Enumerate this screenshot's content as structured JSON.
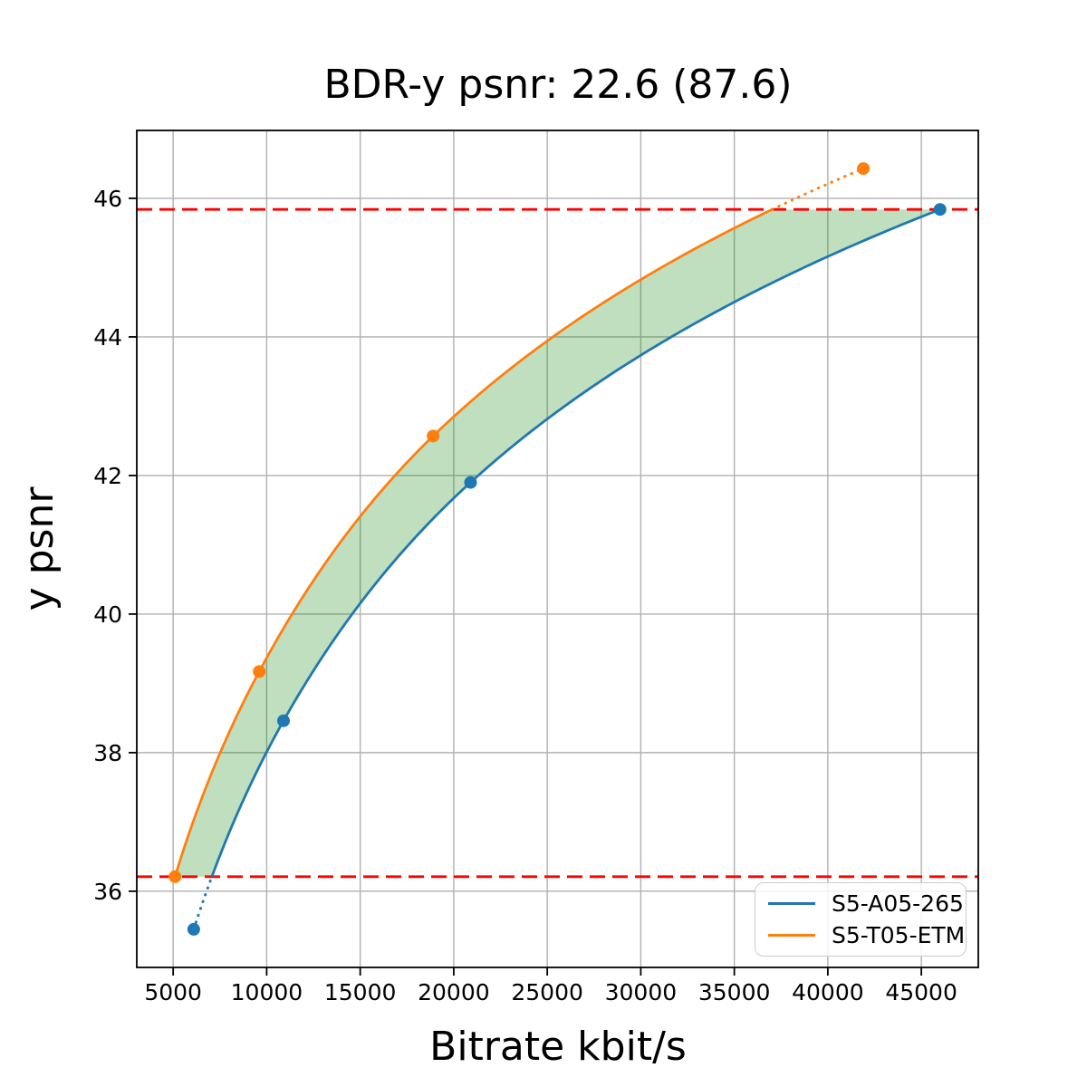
{
  "figure": {
    "background": "#ffffff"
  },
  "chart_data": {
    "type": "line",
    "title": "BDR-y psnr: 22.6 (87.6)",
    "xlabel": "Bitrate kbit/s",
    "ylabel": "y psnr",
    "xlim": [
      3055,
      48045
    ],
    "ylim": [
      34.9,
      46.98
    ],
    "x_ticks": [
      "5000",
      "10000",
      "15000",
      "20000",
      "25000",
      "30000",
      "35000",
      "40000",
      "45000"
    ],
    "x_tick_values": [
      5000,
      10000,
      15000,
      20000,
      25000,
      30000,
      35000,
      40000,
      45000
    ],
    "y_ticks": [
      "36",
      "38",
      "40",
      "42",
      "44",
      "46"
    ],
    "y_tick_values": [
      36,
      38,
      40,
      42,
      44,
      46
    ],
    "grid": true,
    "grid_color": "#b0b0b0",
    "legend_position": "lower right",
    "series": [
      {
        "name": "S5-A05-265",
        "color": "#1f77b4",
        "points": [
          [
            6100,
            35.45
          ],
          [
            10900,
            38.46
          ],
          [
            20900,
            41.9
          ],
          [
            46000,
            45.84
          ]
        ]
      },
      {
        "name": "S5-T05-ETM",
        "color": "#ff7f0e",
        "points": [
          [
            5100,
            36.21
          ],
          [
            9600,
            39.17
          ],
          [
            18900,
            42.57
          ],
          [
            41900,
            46.43
          ]
        ]
      }
    ],
    "overlap_lines": {
      "color": "#ff0000",
      "low": 36.21,
      "high": 45.84
    },
    "shaded_region": {
      "color": "#008000",
      "alpha": 0.25
    },
    "interpolation": "pchip-log10"
  }
}
